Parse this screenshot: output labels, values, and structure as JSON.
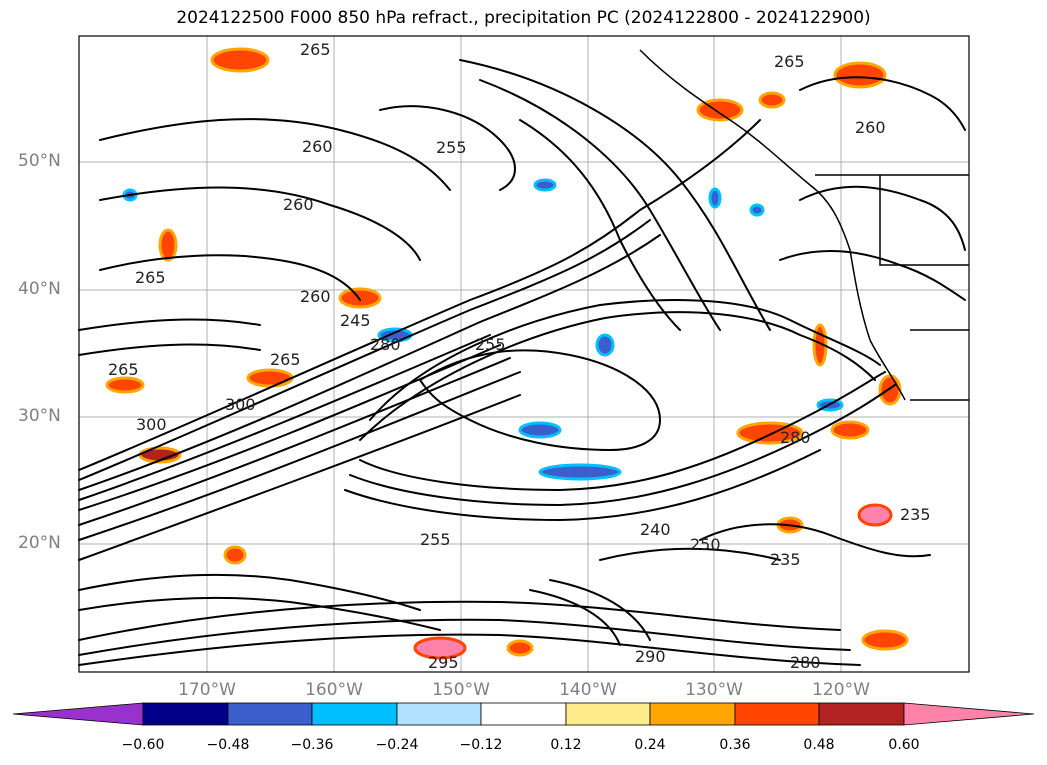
{
  "title": "2024122500 F000 850 hPa refract., precipitation PC (2024122800 - 2024122900)",
  "map": {
    "lat_labels": [
      "50°N",
      "40°N",
      "30°N",
      "20°N"
    ],
    "lon_labels": [
      "170°W",
      "160°W",
      "150°W",
      "140°W",
      "130°W",
      "120°W"
    ],
    "contour_labels": [
      "265",
      "265",
      "260",
      "255",
      "260",
      "265",
      "245",
      "260",
      "265",
      "300",
      "280",
      "300",
      "240",
      "250",
      "235",
      "235",
      "290",
      "295",
      "280",
      "255",
      "260",
      "265",
      "255",
      "280"
    ]
  },
  "colorbar": {
    "ticks": [
      "−0.60",
      "−0.48",
      "−0.36",
      "−0.24",
      "−0.12",
      "0.12",
      "0.24",
      "0.36",
      "0.48",
      "0.60"
    ],
    "colors": [
      "#9932cc",
      "#00008b",
      "#3a5fcd",
      "#00bfff",
      "#b0e2ff",
      "#ffffff",
      "#ffec8b",
      "#ffa500",
      "#ff4500",
      "#b22222",
      "#ff82ab"
    ]
  },
  "colors": {
    "contour": "#000000",
    "grid": "#b0b0b0",
    "axis_text": "#808080"
  }
}
